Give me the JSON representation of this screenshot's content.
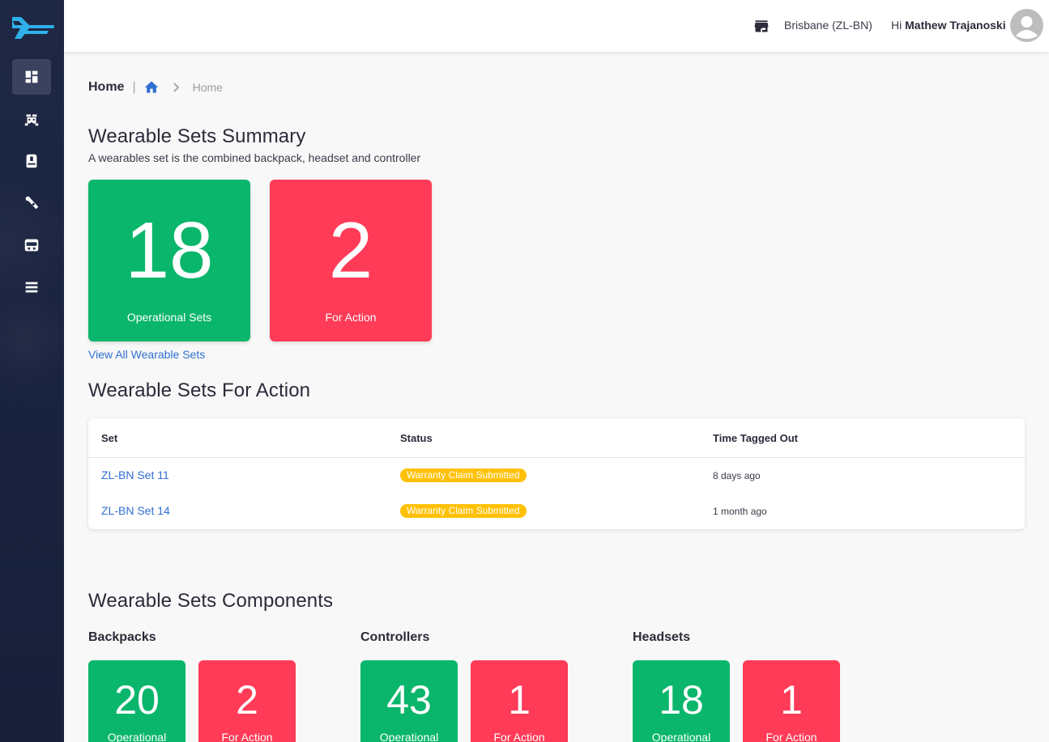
{
  "sidebar": {
    "logo": "plane-logo",
    "items": [
      {
        "name": "dashboard-icon",
        "active": true
      },
      {
        "name": "vr-kit-icon",
        "active": false
      },
      {
        "name": "backpack-icon",
        "active": false
      },
      {
        "name": "controller-icon",
        "active": false
      },
      {
        "name": "headset-icon",
        "active": false
      },
      {
        "name": "list-icon",
        "active": false
      }
    ]
  },
  "topbar": {
    "location": "Brisbane (ZL-BN)",
    "greeting_prefix": "Hi ",
    "user_name": "Mathew Trajanoski"
  },
  "breadcrumb": {
    "title": "Home",
    "separator": "|",
    "current": "Home"
  },
  "summary": {
    "title": "Wearable Sets Summary",
    "subtitle": "A wearables set is the combined backpack, headset and controller",
    "operational_count": "18",
    "operational_label": "Operational Sets",
    "action_count": "2",
    "action_label": "For Action",
    "view_all": "View All Wearable Sets"
  },
  "for_action": {
    "title": "Wearable Sets For Action",
    "headers": [
      "Set",
      "Status",
      "Time Tagged Out"
    ],
    "rows": [
      {
        "set": "ZL-BN Set 11",
        "status": "Warranty Claim Submitted",
        "time": "8 days ago"
      },
      {
        "set": "ZL-BN Set 14",
        "status": "Warranty Claim Submitted",
        "time": "1 month ago"
      }
    ]
  },
  "components": {
    "title": "Wearable Sets Components",
    "groups": [
      {
        "name": "Backpacks",
        "operational": "20",
        "operational_label": "Operational",
        "action": "2",
        "action_label": "For Action"
      },
      {
        "name": "Controllers",
        "operational": "43",
        "operational_label": "Operational",
        "action": "1",
        "action_label": "For Action"
      },
      {
        "name": "Headsets",
        "operational": "18",
        "operational_label": "Operational",
        "action": "1",
        "action_label": "For Action"
      }
    ]
  },
  "colors": {
    "green": "#0ab66b",
    "red": "#ff3b57",
    "badge": "#ffc107",
    "link": "#2f6fd1",
    "sidebar": "#1e2744"
  }
}
